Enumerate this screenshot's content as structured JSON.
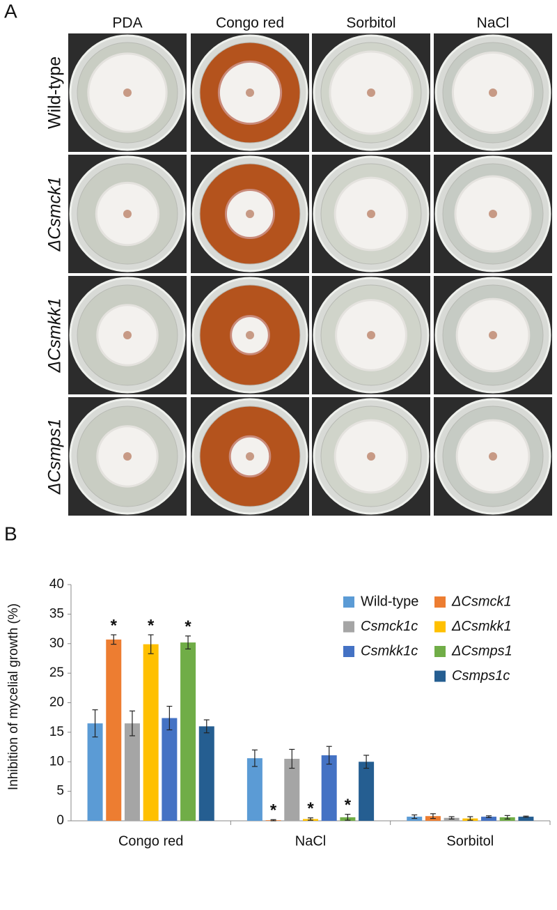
{
  "panel_a": {
    "label": "A",
    "columns": [
      "PDA",
      "Congo red",
      "Sorbitol",
      "NaCl"
    ],
    "rows": [
      "Wild-type",
      "ΔCsmck1",
      "ΔCsmkk1",
      "ΔCsmps1"
    ]
  },
  "chart_data": {
    "type": "bar",
    "panel_label": "B",
    "y_label": "Inhibition of mycelial growth (%)",
    "categories": [
      "Congo red",
      "NaCl",
      "Sorbitol"
    ],
    "ylim": [
      0,
      40
    ],
    "yticks": [
      0,
      5,
      10,
      15,
      20,
      25,
      30,
      35,
      40
    ],
    "grid": false,
    "legend": "upper right",
    "series": [
      {
        "name": "Wild-type",
        "color": "#5b9bd5",
        "italic": false,
        "values": [
          16.5,
          10.6,
          0.7
        ],
        "errors": [
          2.3,
          1.4,
          0.3
        ]
      },
      {
        "name": "ΔCsmck1",
        "color": "#ed7d31",
        "italic": true,
        "values": [
          30.7,
          0.1,
          0.8
        ],
        "errors": [
          0.8,
          0.1,
          0.4
        ],
        "markers": [
          "*",
          "*",
          null
        ]
      },
      {
        "name": "Csmck1c",
        "color": "#a5a5a5",
        "italic": true,
        "values": [
          16.5,
          10.5,
          0.5
        ],
        "errors": [
          2.1,
          1.6,
          0.2
        ]
      },
      {
        "name": "ΔCsmkk1",
        "color": "#ffc000",
        "italic": true,
        "values": [
          29.9,
          0.3,
          0.4
        ],
        "errors": [
          1.6,
          0.2,
          0.3
        ],
        "markers": [
          "*",
          "*",
          null
        ]
      },
      {
        "name": "Csmkk1c",
        "color": "#4472c4",
        "italic": true,
        "values": [
          17.4,
          11.1,
          0.7
        ],
        "errors": [
          2.0,
          1.5,
          0.15
        ]
      },
      {
        "name": "ΔCsmps1",
        "color": "#70ad47",
        "italic": true,
        "values": [
          30.2,
          0.6,
          0.6
        ],
        "errors": [
          1.1,
          0.5,
          0.3
        ],
        "markers": [
          "*",
          "*",
          null
        ]
      },
      {
        "name": "Csmps1c",
        "color": "#255e91",
        "italic": true,
        "values": [
          16.0,
          10.0,
          0.7
        ],
        "errors": [
          1.1,
          1.1,
          0.1
        ]
      }
    ]
  }
}
